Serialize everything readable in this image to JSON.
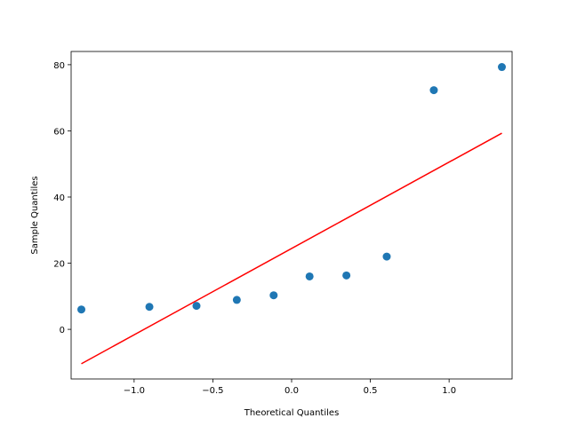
{
  "chart_data": {
    "type": "scatter",
    "title": "",
    "xlabel": "Theoretical Quantiles",
    "ylabel": "Sample Quantiles",
    "xlim": [
      -1.4,
      1.4
    ],
    "ylim": [
      -15,
      84
    ],
    "xticks": [
      -1.0,
      -0.5,
      0.0,
      0.5,
      1.0
    ],
    "xtick_labels": [
      "−1.0",
      "−0.5",
      "0.0",
      "0.5",
      "1.0"
    ],
    "yticks": [
      0,
      20,
      40,
      60,
      80
    ],
    "ytick_labels": [
      "0",
      "20",
      "40",
      "60",
      "80"
    ],
    "grid": false,
    "series": [
      {
        "kind": "points",
        "color": "#1f77b4",
        "x": [
          -1.335,
          -0.903,
          -0.604,
          -0.348,
          -0.114,
          0.114,
          0.348,
          0.604,
          0.903,
          1.335
        ],
        "y": [
          6.0,
          6.8,
          7.1,
          8.9,
          10.3,
          16.0,
          16.3,
          22.0,
          72.3,
          79.3
        ]
      },
      {
        "kind": "line",
        "color": "#ff0000",
        "x": [
          -1.335,
          1.335
        ],
        "y": [
          -10.4,
          59.3
        ]
      }
    ]
  }
}
